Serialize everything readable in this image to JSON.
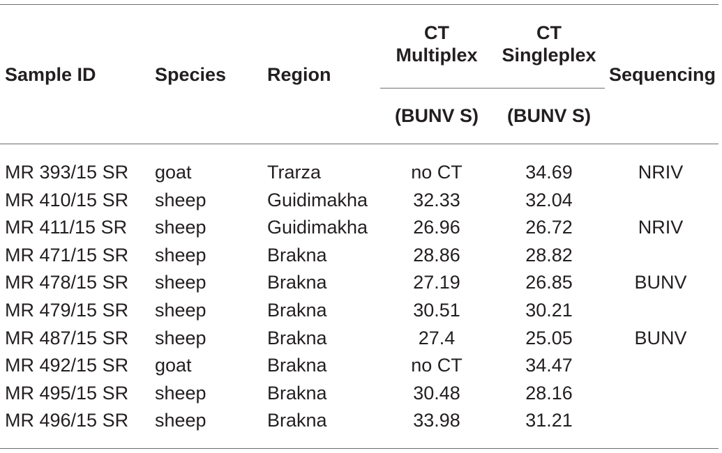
{
  "table": {
    "headers": {
      "sample_id": "Sample ID",
      "species": "Species",
      "region": "Region",
      "ct_multiplex": [
        "CT",
        "Multiplex"
      ],
      "ct_singleplex": [
        "CT",
        "Singleplex"
      ],
      "sequencing": "Sequencing",
      "multiplex_sub": "(BUNV S)",
      "singleplex_sub": "(BUNV S)"
    },
    "rows": [
      {
        "sample_id": "MR 393/15 SR",
        "species": "goat",
        "region": "Trarza",
        "ct_multiplex": "no CT",
        "ct_singleplex": "34.69",
        "sequencing": "NRIV"
      },
      {
        "sample_id": "MR 410/15 SR",
        "species": "sheep",
        "region": "Guidimakha",
        "ct_multiplex": "32.33",
        "ct_singleplex": "32.04",
        "sequencing": ""
      },
      {
        "sample_id": "MR 411/15 SR",
        "species": "sheep",
        "region": "Guidimakha",
        "ct_multiplex": "26.96",
        "ct_singleplex": "26.72",
        "sequencing": "NRIV"
      },
      {
        "sample_id": "MR 471/15 SR",
        "species": "sheep",
        "region": "Brakna",
        "ct_multiplex": "28.86",
        "ct_singleplex": "28.82",
        "sequencing": ""
      },
      {
        "sample_id": "MR 478/15 SR",
        "species": "sheep",
        "region": "Brakna",
        "ct_multiplex": "27.19",
        "ct_singleplex": "26.85",
        "sequencing": "BUNV"
      },
      {
        "sample_id": "MR 479/15 SR",
        "species": "sheep",
        "region": "Brakna",
        "ct_multiplex": "30.51",
        "ct_singleplex": "30.21",
        "sequencing": ""
      },
      {
        "sample_id": "MR 487/15 SR",
        "species": "sheep",
        "region": "Brakna",
        "ct_multiplex": "27.4",
        "ct_singleplex": "25.05",
        "sequencing": "BUNV"
      },
      {
        "sample_id": "MR 492/15 SR",
        "species": "goat",
        "region": "Brakna",
        "ct_multiplex": "no CT",
        "ct_singleplex": "34.47",
        "sequencing": ""
      },
      {
        "sample_id": "MR 495/15 SR",
        "species": "sheep",
        "region": "Brakna",
        "ct_multiplex": "30.48",
        "ct_singleplex": "28.16",
        "sequencing": ""
      },
      {
        "sample_id": "MR 496/15 SR",
        "species": "sheep",
        "region": "Brakna",
        "ct_multiplex": "33.98",
        "ct_singleplex": "31.21",
        "sequencing": ""
      }
    ]
  }
}
